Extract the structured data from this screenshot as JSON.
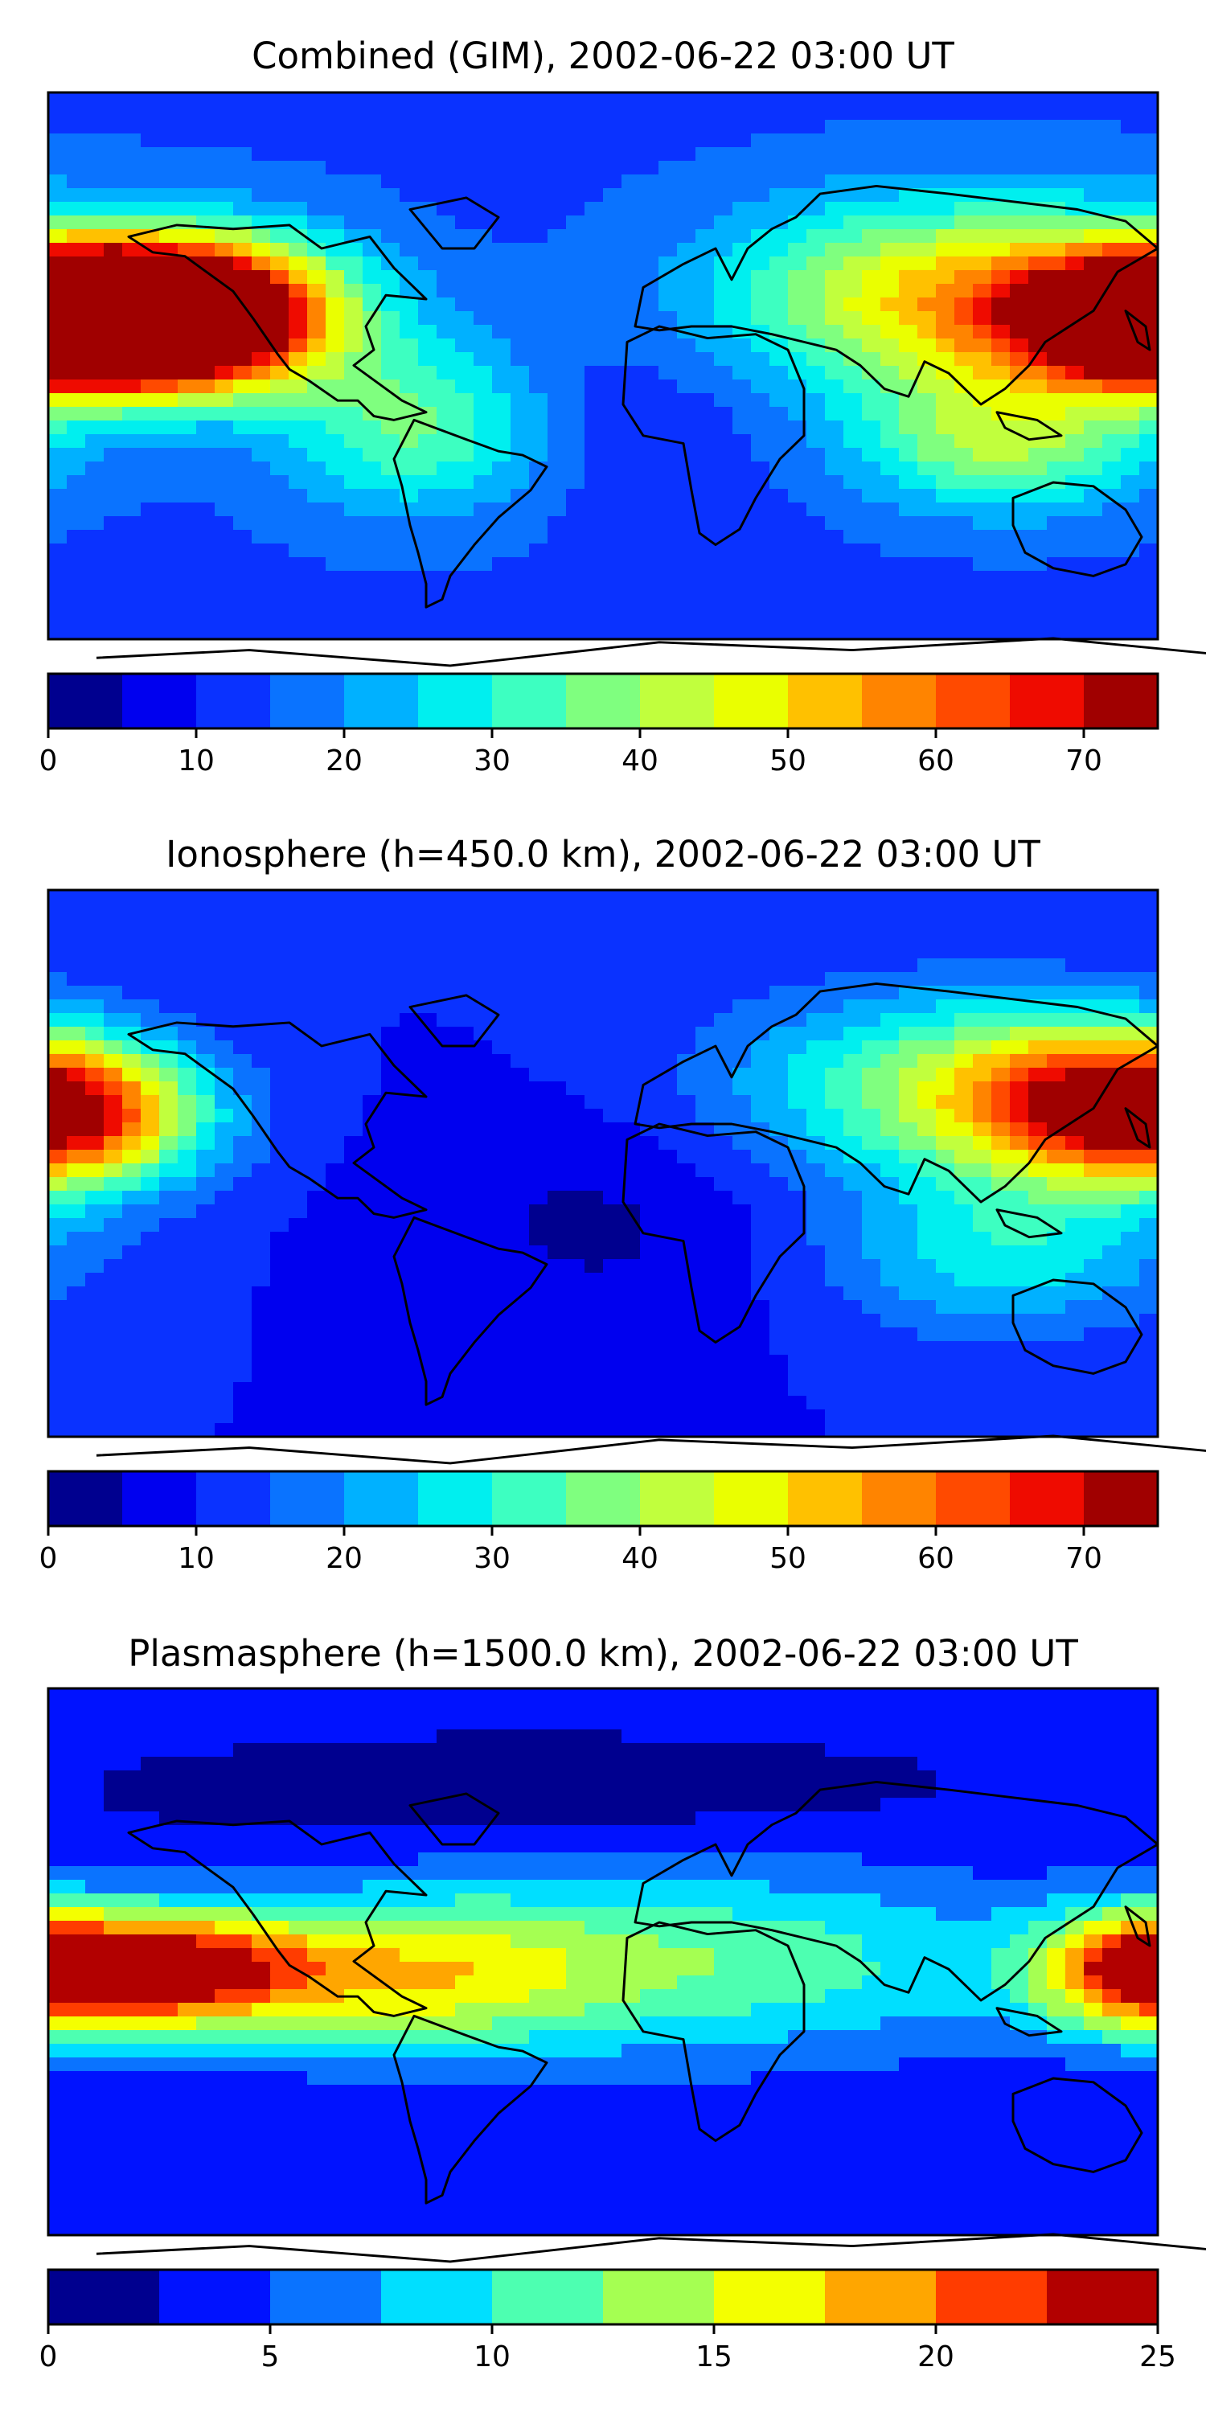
{
  "chart_data": [
    {
      "type": "heatmap",
      "title": "Combined (GIM), 2002-06-22 03:00 UT",
      "colorbar": {
        "ticks": [
          0,
          10,
          20,
          30,
          40,
          50,
          60,
          70
        ],
        "levels": [
          0,
          5,
          10,
          15,
          20,
          25,
          30,
          35,
          40,
          45,
          50,
          55,
          60,
          65,
          70,
          75
        ],
        "colors": [
          "#00008f",
          "#0000ef",
          "#0a32ff",
          "#0a73ff",
          "#00b1ff",
          "#00efef",
          "#3dffc1",
          "#7fff7f",
          "#c1ff3d",
          "#eaff00",
          "#ffc100",
          "#ff8400",
          "#ff4a00",
          "#ef0b00",
          "#a00000"
        ]
      },
      "field": {
        "base": 14,
        "features": [
          {
            "lon": -150,
            "lat": 15,
            "value": 68,
            "sigma_lon": 30,
            "sigma_lat": 14
          },
          {
            "lon": -130,
            "lat": 18,
            "value": 52,
            "sigma_lon": 35,
            "sigma_lat": 18
          },
          {
            "lon": 175,
            "lat": 15,
            "value": 60,
            "sigma_lon": 28,
            "sigma_lat": 14
          },
          {
            "lon": 120,
            "lat": 22,
            "value": 40,
            "sigma_lon": 55,
            "sigma_lat": 22
          },
          {
            "lon": 130,
            "lat": -25,
            "value": 25,
            "sigma_lon": 35,
            "sigma_lat": 16
          },
          {
            "lon": -60,
            "lat": -20,
            "value": 22,
            "sigma_lon": 30,
            "sigma_lat": 20
          },
          {
            "lon": 10,
            "lat": -15,
            "value": -4,
            "sigma_lon": 40,
            "sigma_lat": 25
          }
        ]
      }
    },
    {
      "type": "heatmap",
      "title": "Ionosphere  (h=450.0 km), 2002-06-22 03:00 UT",
      "colorbar": {
        "ticks": [
          0,
          10,
          20,
          30,
          40,
          50,
          60,
          70
        ],
        "levels": [
          0,
          5,
          10,
          15,
          20,
          25,
          30,
          35,
          40,
          45,
          50,
          55,
          60,
          65,
          70,
          75
        ],
        "colors": [
          "#00008f",
          "#0000ef",
          "#0a32ff",
          "#0a73ff",
          "#00b1ff",
          "#00efef",
          "#3dffc1",
          "#7fff7f",
          "#c1ff3d",
          "#eaff00",
          "#ffc100",
          "#ff8400",
          "#ff4a00",
          "#ef0b00",
          "#a00000"
        ]
      },
      "field": {
        "base": 10,
        "features": [
          {
            "lon": -170,
            "lat": 15,
            "value": 38,
            "sigma_lon": 30,
            "sigma_lat": 16
          },
          {
            "lon": 160,
            "lat": 20,
            "value": 38,
            "sigma_lon": 35,
            "sigma_lat": 18
          },
          {
            "lon": 110,
            "lat": 25,
            "value": 25,
            "sigma_lon": 50,
            "sigma_lat": 22
          },
          {
            "lon": 130,
            "lat": -30,
            "value": 18,
            "sigma_lon": 40,
            "sigma_lat": 18
          },
          {
            "lon": 0,
            "lat": -20,
            "value": -6,
            "sigma_lon": 45,
            "sigma_lat": 25
          }
        ]
      }
    },
    {
      "type": "heatmap",
      "title": "Plasmasphere (h=1500.0 km), 2002-06-22 03:00 UT",
      "colorbar": {
        "ticks": [
          0,
          5,
          10,
          15,
          20,
          25
        ],
        "levels": [
          0,
          2.5,
          5,
          7.5,
          10,
          12.5,
          15,
          17.5,
          20,
          22.5,
          25
        ],
        "colors": [
          "#00008f",
          "#0012ff",
          "#0a73ff",
          "#00dfff",
          "#4dffb1",
          "#a5ff52",
          "#f4ff00",
          "#ffa600",
          "#ff3c00",
          "#b20000"
        ]
      },
      "field": {
        "base": 3,
        "features": [
          {
            "lon": -140,
            "lat": -3,
            "value": 20,
            "sigma_lon": 35,
            "sigma_lat": 14
          },
          {
            "lon": 175,
            "lat": -3,
            "value": 16,
            "sigma_lon": 25,
            "sigma_lat": 14
          },
          {
            "lon": -60,
            "lat": -5,
            "value": 9,
            "sigma_lon": 40,
            "sigma_lat": 18
          },
          {
            "lon": 30,
            "lat": 0,
            "value": 9,
            "sigma_lon": 80,
            "sigma_lat": 22
          },
          {
            "lon": -20,
            "lat": 55,
            "value": -2,
            "sigma_lon": 90,
            "sigma_lat": 12
          }
        ]
      }
    }
  ]
}
